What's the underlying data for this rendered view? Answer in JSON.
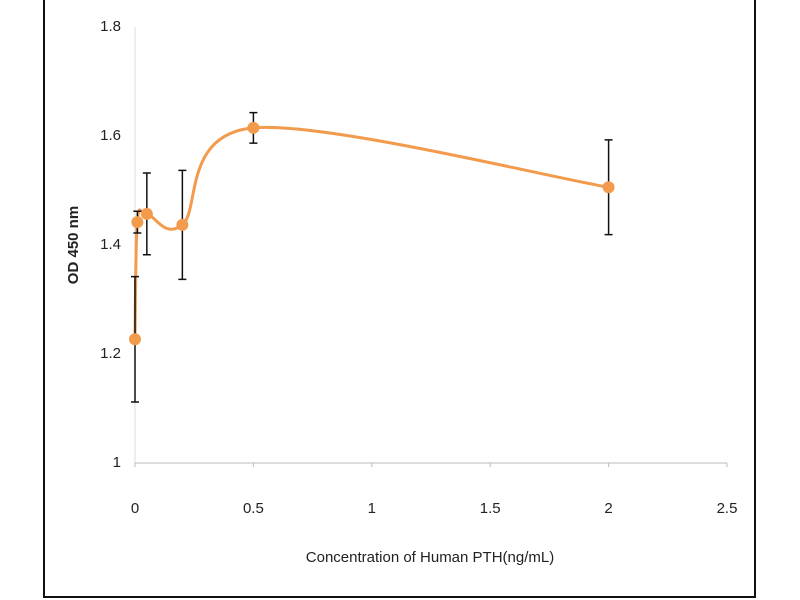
{
  "chart_data": {
    "type": "scatter",
    "x_label": "Concentration of Human PTH(ng/mL)",
    "y_label": "OD 450 nm",
    "x": [
      0,
      0.01,
      0.05,
      0.2,
      0.5,
      2
    ],
    "series": [
      {
        "name": "OD",
        "color": "#f29b4c",
        "values": [
          1.227,
          1.442,
          1.457,
          1.437,
          1.615,
          1.506
        ],
        "errors": [
          0.115,
          0.02,
          0.075,
          0.1,
          0.028,
          0.087
        ]
      }
    ],
    "smooth": true,
    "xlim": [
      0,
      2.5
    ],
    "xticks": [
      0,
      0.5,
      1,
      1.5,
      2,
      2.5
    ],
    "ylim": [
      1,
      1.8
    ],
    "yticks": [
      1,
      1.2,
      1.4,
      1.6,
      1.8
    ],
    "grid": false
  }
}
